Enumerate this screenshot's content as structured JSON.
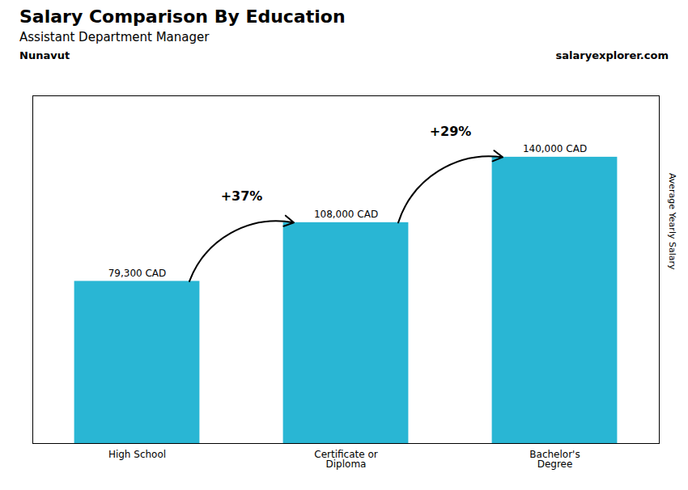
{
  "chart_data": {
    "type": "bar",
    "title": "Salary Comparison By Education",
    "subtitle": "Assistant Department Manager",
    "annotations": [
      "Nunavut",
      "salaryexplorer.com"
    ],
    "categories": [
      "High School",
      "Certificate or\nDiploma",
      "Bachelor's\nDegree"
    ],
    "values": [
      79300,
      108000,
      140000
    ],
    "value_labels": [
      "79,300 CAD",
      "108,000 CAD",
      "140,000 CAD"
    ],
    "data_labels": true,
    "color": "#29b6d4",
    "ylabel": "Average Yearly Salary",
    "ylim": [
      0,
      170000
    ],
    "tick_labels": "x",
    "changes": [
      37,
      29
    ],
    "change_labels": [
      "+37%",
      "+29%"
    ]
  }
}
